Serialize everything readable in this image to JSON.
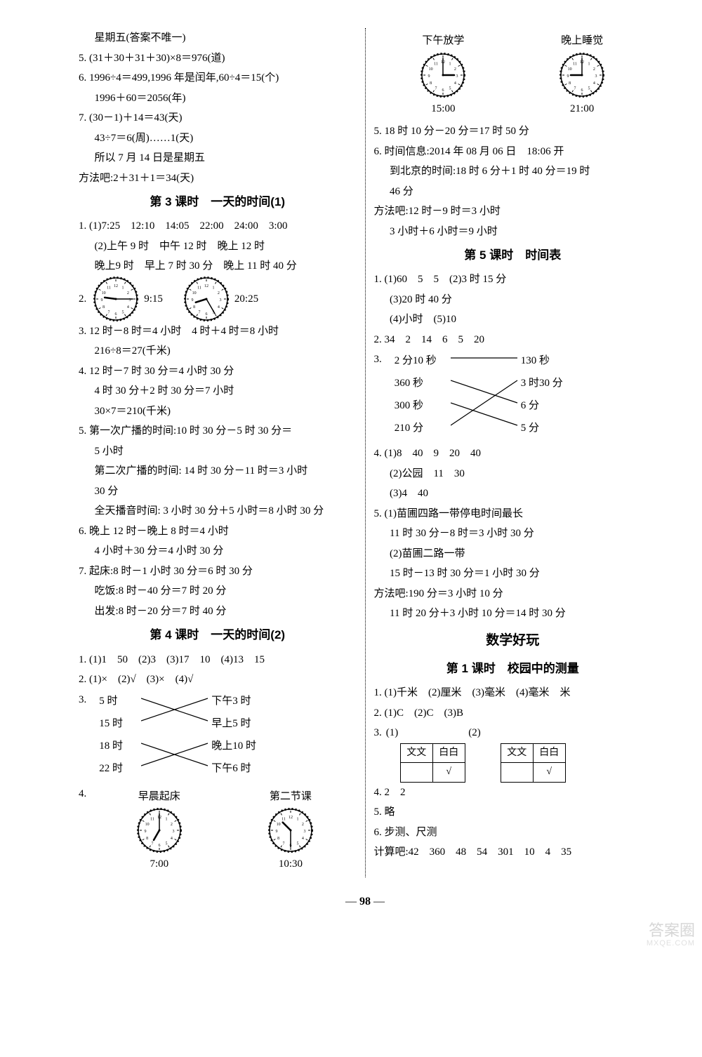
{
  "page_number": "98",
  "watermark": {
    "top": "答案圈",
    "bottom": "MXQE.COM"
  },
  "left": {
    "pre": [
      "星期五(答案不唯一)",
      "5. (31＋30＋31＋30)×8＝976(道)",
      "6. 1996÷4＝499,1996 年是闰年,60÷4＝15(个)",
      "1996＋60＝2056(年)",
      "7. (30－1)＋14＝43(天)",
      "43÷7＝6(周)……1(天)",
      "所以 7 月 14 日是星期五",
      "方法吧:2＋31＋1＝34(天)"
    ],
    "sec3_title": "第 3 课时　一天的时间(1)",
    "sec3": {
      "q1a": "1. (1)7:25　12:10　14:05　22:00　24:00　3:00",
      "q1b": "(2)上午 9 时　中午 12 时　晚上 12 时",
      "q1c": "晚上9 时　早上 7 时 30 分　晚上 11 时 40 分",
      "q2_label": "2.",
      "q2_clocks": [
        {
          "h": 9,
          "m": 15,
          "label": "9:15"
        },
        {
          "h": 20,
          "m": 25,
          "label": "20:25"
        }
      ],
      "rest": [
        "3. 12 时－8 时＝4 小时　4 时＋4 时＝8 小时",
        "216÷8＝27(千米)",
        "4. 12 时－7 时 30 分＝4 小时 30 分",
        "4 时 30 分＋2 时 30 分＝7 小时",
        "30×7＝210(千米)",
        "5. 第一次广播的时间:10 时 30 分－5 时 30 分＝",
        "5 小时",
        "第二次广播的时间: 14 时 30 分－11 时＝3 小时",
        "30 分",
        "全天播音时间: 3 小时 30 分＋5 小时＝8 小时 30 分",
        "6. 晚上 12 时－晚上 8 时＝4 小时",
        "4 小时＋30 分＝4 小时 30 分",
        "7. 起床:8 时－1 小时 30 分＝6 时 30 分",
        "吃饭:8 时－40 分＝7 时 20 分",
        "出发:8 时－20 分＝7 时 40 分"
      ]
    },
    "sec4_title": "第 4 课时　一天的时间(2)",
    "sec4": {
      "q1": "1. (1)1　50　(2)3　(3)17　10　(4)13　15",
      "q2": "2. (1)×　(2)√　(3)×　(4)√",
      "q3_label": "3.",
      "q3_left": [
        "5 时",
        "15 时",
        "18 时",
        "22 时"
      ],
      "q3_right": [
        "下午3 时",
        "早上5 时",
        "晚上10 时",
        "下午6 时"
      ],
      "q4_label": "4.",
      "q4_clocks": [
        {
          "title": "早晨起床",
          "h": 7,
          "m": 0,
          "label": "7:00"
        },
        {
          "title": "第二节课",
          "h": 10,
          "m": 30,
          "label": "10:30"
        }
      ]
    }
  },
  "right": {
    "top_clocks": [
      {
        "title": "下午放学",
        "h": 15,
        "m": 0,
        "label": "15:00"
      },
      {
        "title": "晚上睡觉",
        "h": 21,
        "m": 0,
        "label": "21:00"
      }
    ],
    "after_clocks": [
      "5. 18 时 10 分－20 分＝17 时 50 分",
      "6. 时间信息:2014 年 08 月 06 日　18:06 开",
      "到北京的时间:18 时 6 分＋1 时 40 分＝19 时",
      "46 分",
      "方法吧:12 时－9 时＝3 小时",
      "3 小时＋6 小时＝9 小时"
    ],
    "sec5_title": "第 5 课时　时间表",
    "sec5": {
      "q1": [
        "1. (1)60　5　5　(2)3 时 15 分",
        "(3)20 时 40 分",
        "(4)小时　(5)10"
      ],
      "q2": "2. 34　2　14　6　5　20",
      "q3_label": "3.",
      "q3_left": [
        "2 分10 秒",
        "360 秒",
        "300 秒",
        "210 分"
      ],
      "q3_right": [
        "130 秒",
        "3 时30 分",
        "6 分",
        "5 分"
      ],
      "rest": [
        "4. (1)8　40　9　20　40",
        "(2)公园　11　30",
        "(3)4　40",
        "5. (1)苗圃四路一带停电时间最长",
        "11 时 30 分－8 时＝3 小时 30 分",
        "(2)苗圃二路一带",
        "15 时－13 时 30 分＝1 小时 30 分",
        "方法吧:190 分＝3 小时 10 分",
        "11 时 20 分＋3 小时 10 分＝14 时 30 分"
      ]
    },
    "fun_title": "数学好玩",
    "fun_sec1_title": "第 1 课时　校园中的测量",
    "fun": {
      "q1": "1. (1)千米　(2)厘米　(3)毫米　(4)毫米　米",
      "q2": "2. (1)C　(2)C　(3)B",
      "q3_label": "3.",
      "q3_sub": [
        "(1)",
        "(2)"
      ],
      "q3_headers": [
        "文文",
        "白白"
      ],
      "q3_check": "√",
      "rest": [
        "4. 2　2",
        "5. 略",
        "6. 步测、尺测",
        "计算吧:42　360　48　54　301　10　4　35"
      ]
    }
  }
}
